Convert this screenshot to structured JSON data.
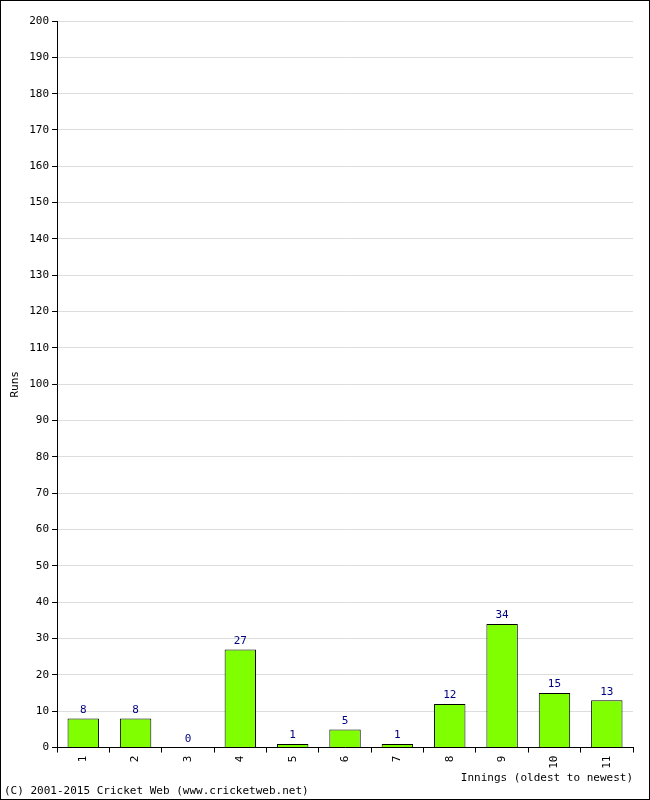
{
  "chart_data": {
    "type": "bar",
    "categories": [
      "1",
      "2",
      "3",
      "4",
      "5",
      "6",
      "7",
      "8",
      "9",
      "10",
      "11"
    ],
    "values": [
      8,
      8,
      0,
      27,
      1,
      5,
      1,
      12,
      34,
      15,
      13
    ],
    "color": "#7fff00",
    "x_label": "Innings (oldest to newest)",
    "y_label": "Runs",
    "ylim": [
      0,
      200
    ],
    "yticks": [
      0,
      10,
      20,
      30,
      40,
      50,
      60,
      70,
      80,
      90,
      100,
      110,
      120,
      130,
      140,
      150,
      160,
      170,
      180,
      190,
      200
    ],
    "grid": true,
    "data_labels": true,
    "annotations": [
      "(C) 2001-2015 Cricket Web (www.cricketweb.net)"
    ]
  }
}
